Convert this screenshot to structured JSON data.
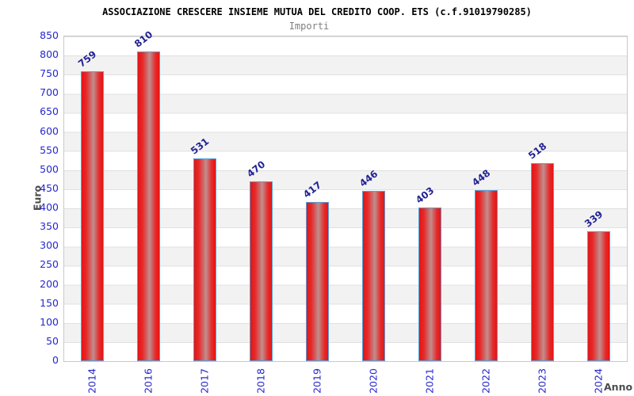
{
  "chart_data": {
    "type": "bar",
    "title": "ASSOCIAZIONE CRESCERE INSIEME MUTUA DEL CREDITO COOP. ETS (c.f.91019790285)",
    "subtitle": "Importi",
    "xlabel": "Anno",
    "ylabel": "Euro",
    "categories": [
      "2014",
      "2016",
      "2017",
      "2018",
      "2019",
      "2020",
      "2021",
      "2022",
      "2023",
      "2024"
    ],
    "values": [
      759,
      810,
      531,
      470,
      417,
      446,
      403,
      448,
      518,
      339
    ],
    "ylim": [
      0,
      850
    ],
    "ytick_step": 50,
    "grid": "horizontal-bands-alternating",
    "legend": "none",
    "colors": {
      "bar_fill_edge": "#e51414",
      "bar_fill_highlight": "#c08e8e",
      "bar_border": "#56a0d9",
      "tick_label": "#2727cf",
      "value_label": "#232394",
      "axis_title": "#4d4d4d",
      "title": "#000000",
      "subtitle": "#7f7f7f",
      "band_gray": "#f2f2f2",
      "plot_border": "#c9c9c9"
    }
  }
}
